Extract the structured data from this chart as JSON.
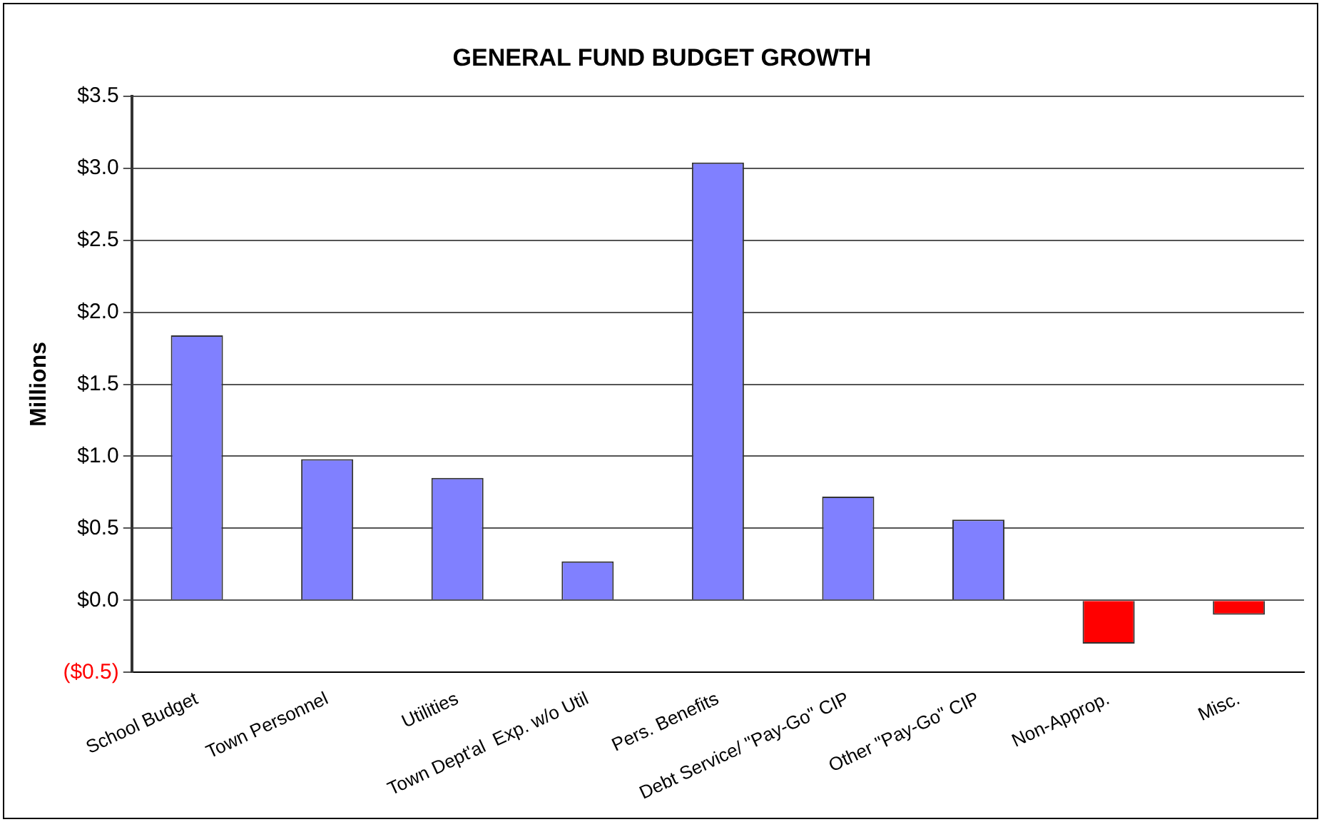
{
  "chart_data": {
    "type": "bar",
    "title": "GENERAL FUND BUDGET GROWTH",
    "ylabel": "Millions",
    "categories": [
      "School Budget",
      "Town Personnel",
      "Utilities",
      "Town Dept'al  Exp. w/o Util",
      "Pers. Benefits",
      "Debt Service/ \"Pay-Go\" CIP",
      "Other \"Pay-Go\" CIP",
      "Non-Approp.",
      "Misc."
    ],
    "values": [
      1.84,
      0.98,
      0.85,
      0.27,
      3.04,
      0.72,
      0.56,
      -0.3,
      -0.1
    ],
    "colors": [
      "#8080ff",
      "#8080ff",
      "#8080ff",
      "#8080ff",
      "#8080ff",
      "#8080ff",
      "#8080ff",
      "#ff0000",
      "#ff0000"
    ],
    "ylim": [
      -0.5,
      3.5
    ],
    "yticks": [
      {
        "value": -0.5,
        "label": "($0.5)"
      },
      {
        "value": 0,
        "label": "$0.0"
      },
      {
        "value": 0.5,
        "label": "$0.5"
      },
      {
        "value": 1,
        "label": "$1.0"
      },
      {
        "value": 1.5,
        "label": "$1.5"
      },
      {
        "value": 2,
        "label": "$2.0"
      },
      {
        "value": 2.5,
        "label": "$2.5"
      },
      {
        "value": 3,
        "label": "$3.0"
      },
      {
        "value": 3.5,
        "label": "$3.5"
      }
    ],
    "grid": "y",
    "legend": false
  }
}
